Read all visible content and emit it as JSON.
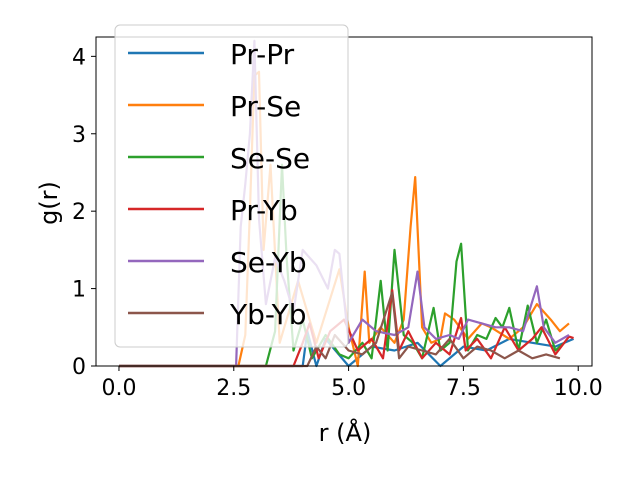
{
  "chart_data": {
    "type": "line",
    "xlabel": "r (Å)",
    "ylabel": "g(r)",
    "xlim": [
      -0.5,
      10.3
    ],
    "ylim": [
      0,
      4.25
    ],
    "x_ticks": [
      0.0,
      2.5,
      5.0,
      7.5,
      10.0
    ],
    "x_tick_labels": [
      "0.0",
      "2.5",
      "5.0",
      "7.5",
      "10.0"
    ],
    "y_ticks": [
      0,
      1,
      2,
      3,
      4
    ],
    "y_tick_labels": [
      "0",
      "1",
      "2",
      "3",
      "4"
    ],
    "grid": false,
    "legend_position": "upper-left",
    "series": [
      {
        "name": "Pr-Pr",
        "color": "#1f77b4",
        "x": [
          0,
          2.6,
          4.0,
          4.1,
          4.3,
          4.5,
          5.0,
          5.5,
          6.0,
          6.5,
          7.0,
          7.5,
          8.0,
          8.5,
          9.0,
          9.5,
          9.9
        ],
        "y": [
          0,
          0,
          0,
          0.45,
          0,
          0.35,
          0,
          0.25,
          0.2,
          0.3,
          0,
          0.25,
          0.2,
          0.35,
          0.3,
          0.25,
          0.35
        ]
      },
      {
        "name": "Pr-Se",
        "color": "#ff7f0e",
        "x": [
          0,
          2.6,
          2.75,
          2.85,
          2.95,
          3.05,
          3.15,
          3.3,
          3.5,
          3.9,
          4.3,
          4.8,
          5.0,
          5.2,
          5.35,
          5.45,
          5.7,
          6.0,
          6.2,
          6.35,
          6.45,
          6.6,
          6.8,
          7.0,
          7.1,
          7.3,
          7.6,
          7.9,
          8.1,
          8.5,
          8.8,
          9.1,
          9.4,
          9.6,
          9.8
        ],
        "y": [
          0,
          0,
          0.4,
          2.0,
          3.75,
          3.8,
          1.5,
          2.6,
          0.3,
          1.1,
          0.3,
          1.25,
          0.5,
          0,
          1.22,
          0.3,
          0.5,
          0.3,
          0.6,
          1.8,
          2.44,
          0.5,
          0.3,
          0.35,
          0.68,
          0.6,
          0.35,
          0.55,
          0.5,
          0.35,
          0.5,
          0.8,
          0.6,
          0.45,
          0.55
        ]
      },
      {
        "name": "Se-Se",
        "color": "#2ca02c",
        "x": [
          0,
          3.2,
          3.4,
          3.55,
          3.65,
          3.8,
          4.0,
          4.2,
          4.5,
          4.8,
          5.0,
          5.3,
          5.5,
          5.7,
          5.85,
          6.0,
          6.2,
          6.4,
          6.6,
          6.85,
          7.0,
          7.2,
          7.35,
          7.45,
          7.6,
          7.8,
          8.0,
          8.2,
          8.35,
          8.5,
          8.7,
          8.9,
          9.1,
          9.3,
          9.5,
          9.7
        ],
        "y": [
          0,
          0,
          0.45,
          2.6,
          1.4,
          0.2,
          0.6,
          0.1,
          0.4,
          0.15,
          0.1,
          0.3,
          0.1,
          1.1,
          0.2,
          1.5,
          0.4,
          0.3,
          0.1,
          0.75,
          0.2,
          0.3,
          1.35,
          1.58,
          0.2,
          0.4,
          0.35,
          0.62,
          0.5,
          0.75,
          0.2,
          0.78,
          0.3,
          0.6,
          0.2,
          0.3
        ]
      },
      {
        "name": "Pr-Yb",
        "color": "#d62728",
        "x": [
          0,
          3.8,
          4.0,
          4.15,
          4.35,
          4.6,
          4.9,
          5.2,
          5.5,
          5.75,
          5.95,
          6.1,
          6.3,
          6.6,
          6.9,
          7.2,
          7.45,
          7.55,
          7.8,
          8.1,
          8.4,
          8.7,
          9.0,
          9.2,
          9.5,
          9.8,
          9.9
        ],
        "y": [
          0,
          0,
          0.3,
          0.55,
          0.1,
          0.45,
          0.6,
          0.2,
          0.35,
          0.1,
          0.98,
          0.2,
          0.45,
          0.1,
          0.3,
          0.15,
          0.62,
          0.2,
          0.35,
          0.1,
          0.5,
          0.2,
          0.35,
          0.5,
          0.15,
          0.38,
          0.36
        ]
      },
      {
        "name": "Se-Yb",
        "color": "#9467bd",
        "x": [
          0,
          2.55,
          2.65,
          2.75,
          2.85,
          2.95,
          3.05,
          3.2,
          3.4,
          3.6,
          3.8,
          4.0,
          4.3,
          4.55,
          4.7,
          4.8,
          5.0,
          5.3,
          5.6,
          6.0,
          6.3,
          6.5,
          6.65,
          6.9,
          7.2,
          7.4,
          7.6,
          7.9,
          8.2,
          8.5,
          8.8,
          9.1,
          9.25,
          9.5,
          9.8
        ],
        "y": [
          0,
          0,
          1.8,
          2.35,
          3.0,
          4.2,
          1.9,
          0.8,
          1.4,
          1.1,
          0.7,
          1.5,
          1.3,
          1.0,
          1.5,
          1.45,
          0.3,
          0.6,
          0.45,
          0.4,
          0.5,
          1.22,
          0.5,
          0.35,
          0.4,
          0.35,
          0.6,
          0.55,
          0.5,
          0.5,
          0.45,
          1.03,
          0.5,
          0.3,
          0.4
        ]
      },
      {
        "name": "Yb-Yb",
        "color": "#8c564b",
        "x": [
          0,
          4.1,
          4.3,
          4.5,
          4.7,
          5.0,
          5.3,
          5.6,
          5.95,
          6.1,
          6.3,
          6.6,
          6.9,
          7.2,
          7.5,
          7.8,
          8.1,
          8.4,
          8.7,
          9.0,
          9.3,
          9.6
        ],
        "y": [
          0,
          0,
          0.25,
          0.1,
          0.4,
          0.2,
          0.15,
          0.3,
          0.95,
          0.1,
          0.25,
          0.2,
          0.15,
          0.35,
          0.1,
          0.25,
          0.2,
          0.1,
          0.2,
          0.1,
          0.15,
          0.1
        ]
      }
    ]
  }
}
